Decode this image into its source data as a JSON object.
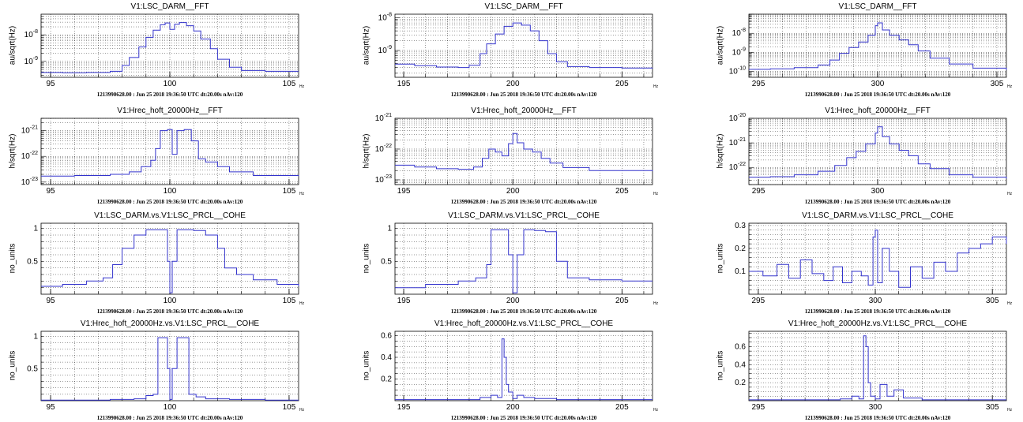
{
  "chart_data": [
    {
      "type": "line",
      "title": "V1:LSC_DARM__FFT",
      "ylabel": "au/sqrt(Hz)",
      "xunit": "Hz",
      "footer": "1213990628.00 : Jun 25 2018 19:36:50 UTC dt:20.00s nAv:120",
      "yscale": "log",
      "xlim": [
        94.6,
        105.4
      ],
      "ylim": [
        2.5e-10,
        6e-08
      ],
      "xticks": [
        "95",
        "100",
        "105"
      ],
      "xtick_values": [
        95,
        100,
        105
      ],
      "yticks": [
        "10^-9",
        "10^-8"
      ],
      "ytick_values": [
        1e-09,
        1e-08
      ],
      "series": [
        {
          "x": [
            94.6,
            95.5,
            96.5,
            97.5,
            98.0,
            98.3,
            98.7,
            99.0,
            99.3,
            99.6,
            99.8,
            100.0,
            100.2,
            100.4,
            100.7,
            101.0,
            101.3,
            101.7,
            102.0,
            102.5,
            103.0,
            104.0,
            105.4
          ],
          "y": [
            3.8e-10,
            3.7e-10,
            3.8e-10,
            4.2e-10,
            7e-10,
            1.4e-09,
            3.5e-09,
            8e-09,
            1.5e-08,
            2.4e-08,
            2.8e-08,
            1.6e-08,
            2.5e-08,
            2.9e-08,
            2.2e-08,
            1.4e-08,
            7e-09,
            3e-09,
            1.2e-09,
            6e-10,
            4.5e-10,
            4.2e-10,
            4.2e-10
          ]
        }
      ]
    },
    {
      "type": "line",
      "title": "V1:LSC_DARM__FFT",
      "ylabel": "au/sqrt(Hz)",
      "xunit": "Hz",
      "footer": "1213990628.00 : Jun 25 2018 19:36:50 UTC dt:20.00s nAv:120",
      "yscale": "log",
      "xlim": [
        194.6,
        206.4
      ],
      "ylim": [
        1.5e-10,
        1.3e-08
      ],
      "xticks": [
        "195",
        "200",
        "205"
      ],
      "xtick_values": [
        195,
        200,
        205
      ],
      "yticks": [
        "10^-9",
        "10^-8"
      ],
      "ytick_values": [
        1e-09,
        1e-08
      ],
      "series": [
        {
          "x": [
            194.6,
            195.5,
            196.5,
            197.5,
            198.0,
            198.5,
            198.8,
            199.2,
            199.6,
            200.0,
            200.4,
            200.8,
            201.2,
            201.6,
            202.0,
            202.5,
            203.5,
            205.0,
            206.4
          ],
          "y": [
            3.8e-10,
            3.4e-10,
            3.1e-10,
            3e-10,
            3.5e-10,
            8e-10,
            1.6e-09,
            3.2e-09,
            5.5e-09,
            7e-09,
            6e-09,
            4e-09,
            2e-09,
            8e-10,
            4.5e-10,
            3.2e-10,
            3e-10,
            2.9e-10,
            2.8e-10
          ]
        }
      ]
    },
    {
      "type": "line",
      "title": "V1:LSC_DARM__FFT",
      "ylabel": "au/sqrt(Hz)",
      "xunit": "Hz",
      "footer": "1213990628.00 : Jun 25 2018 19:36:50 UTC dt:20.00s nAv:120",
      "yscale": "log",
      "xlim": [
        294.6,
        305.4
      ],
      "ylim": [
        5e-11,
        1e-07
      ],
      "xticks": [
        "295",
        "300",
        "305"
      ],
      "xtick_values": [
        295,
        300,
        305
      ],
      "yticks": [
        "10^-10",
        "10^-9",
        "10^-8"
      ],
      "ytick_values": [
        1e-10,
        1e-09,
        1e-08
      ],
      "series": [
        {
          "x": [
            294.6,
            295.5,
            296.5,
            297.5,
            298.0,
            298.4,
            298.8,
            299.2,
            299.6,
            299.9,
            300.0,
            300.2,
            300.5,
            300.9,
            301.3,
            301.7,
            302.2,
            303.0,
            304.0,
            305.4
          ],
          "y": [
            1.3e-10,
            1.4e-10,
            1.6e-10,
            2.2e-10,
            4e-10,
            9e-10,
            1.8e-09,
            3.5e-09,
            8e-09,
            2.5e-08,
            3.5e-08,
            1.5e-08,
            8e-09,
            4.5e-09,
            2.5e-09,
            1.2e-09,
            5e-10,
            2.5e-10,
            1.5e-10,
            1.2e-10
          ]
        }
      ]
    },
    {
      "type": "line",
      "title": "V1:Hrec_hoft_20000Hz__FFT",
      "ylabel": "h/sqrt(Hz)",
      "xunit": "Hz",
      "footer": "1213990628.00 : Jun 25 2018 19:36:50 UTC dt:20.00s nAv:120",
      "yscale": "log",
      "xlim": [
        94.6,
        105.4
      ],
      "ylim": [
        8e-24,
        3e-21
      ],
      "xticks": [
        "95",
        "100",
        "105"
      ],
      "xtick_values": [
        95,
        100,
        105
      ],
      "yticks": [
        "10^-23",
        "10^-22",
        "10^-21"
      ],
      "ytick_values": [
        1e-23,
        1e-22,
        1e-21
      ],
      "series": [
        {
          "x": [
            94.6,
            96.0,
            97.5,
            98.3,
            98.8,
            99.2,
            99.4,
            99.6,
            99.9,
            100.1,
            100.3,
            100.6,
            100.9,
            101.2,
            101.5,
            102.0,
            102.5,
            103.5,
            105.4
          ],
          "y": [
            1.7e-23,
            1.8e-23,
            2e-23,
            2.5e-23,
            4e-23,
            7e-23,
            2e-22,
            1e-21,
            1.1e-21,
            1.2e-22,
            1e-21,
            1.1e-21,
            4e-22,
            8e-23,
            6e-23,
            4e-23,
            2.5e-23,
            1.8e-23,
            1.7e-23
          ]
        }
      ]
    },
    {
      "type": "line",
      "title": "V1:Hrec_hoft_20000Hz__FFT",
      "ylabel": "h/sqrt(Hz)",
      "xunit": "Hz",
      "footer": "1213990628.00 : Jun 25 2018 19:36:50 UTC dt:20.00s nAv:120",
      "yscale": "log",
      "xlim": [
        194.6,
        206.4
      ],
      "ylim": [
        7e-24,
        1e-21
      ],
      "xticks": [
        "195",
        "200",
        "205"
      ],
      "xtick_values": [
        195,
        200,
        205
      ],
      "yticks": [
        "10^-23",
        "10^-22",
        "10^-21"
      ],
      "ytick_values": [
        1e-23,
        1e-22,
        1e-21
      ],
      "series": [
        {
          "x": [
            194.6,
            195.5,
            196.5,
            197.5,
            198.2,
            198.6,
            198.9,
            199.2,
            199.5,
            199.8,
            200.0,
            200.2,
            200.5,
            200.9,
            201.3,
            201.7,
            202.3,
            203.5,
            206.4
          ],
          "y": [
            3e-23,
            2.6e-23,
            2.3e-23,
            2.2e-23,
            2.6e-23,
            5e-23,
            1e-22,
            8e-23,
            6e-23,
            1.5e-22,
            3.2e-22,
            1.6e-22,
            1e-22,
            8e-23,
            5e-23,
            3.5e-23,
            2.5e-23,
            2e-23,
            1.9e-23
          ]
        }
      ]
    },
    {
      "type": "line",
      "title": "V1:Hrec_hoft_20000Hz__FFT",
      "ylabel": "h/sqrt(Hz)",
      "xunit": "Hz",
      "footer": "1213990628.00 : Jun 25 2018 19:36:50 UTC dt:20.00s nAv:120",
      "yscale": "log",
      "xlim": [
        294.6,
        305.4
      ],
      "ylim": [
        2e-23,
        1e-20
      ],
      "xticks": [
        "295",
        "300"
      ],
      "xtick_values": [
        295,
        300
      ],
      "yticks": [
        "10^-22",
        "10^-21",
        "10^-20"
      ],
      "ytick_values": [
        1e-22,
        1e-21,
        1e-20
      ],
      "series": [
        {
          "x": [
            294.6,
            295.5,
            296.5,
            297.5,
            298.2,
            298.7,
            299.1,
            299.5,
            299.9,
            300.0,
            300.2,
            300.5,
            300.9,
            301.3,
            301.7,
            302.2,
            303.0,
            304.0,
            305.4
          ],
          "y": [
            4e-23,
            4.2e-23,
            5e-23,
            7e-23,
            1.2e-22,
            2.5e-22,
            4.5e-22,
            9e-22,
            2.5e-21,
            4.5e-21,
            1.8e-21,
            9e-22,
            5e-22,
            3e-22,
            1.4e-22,
            9e-23,
            5e-23,
            4e-23,
            3.5e-23
          ]
        }
      ]
    },
    {
      "type": "line",
      "title": "V1:LSC_DARM.vs.V1:LSC_PRCL__COHE",
      "ylabel": "no_units",
      "xunit": "Hz",
      "footer": "1213990628.00 : Jun 25 2018 19:36:50 UTC dt:20.00s nAv:120",
      "yscale": "linear",
      "xlim": [
        94.6,
        105.4
      ],
      "ylim": [
        0,
        1.08
      ],
      "xticks": [
        "95",
        "100",
        "105"
      ],
      "xtick_values": [
        95,
        100,
        105
      ],
      "yticks": [
        "0.5",
        "1"
      ],
      "ytick_values": [
        0.5,
        1
      ],
      "series": [
        {
          "x": [
            94.6,
            95.5,
            96.5,
            97.2,
            97.6,
            98.0,
            98.5,
            99.0,
            99.7,
            99.9,
            100.0,
            100.1,
            100.3,
            101.0,
            101.5,
            102.0,
            102.3,
            102.8,
            103.5,
            104.5,
            105.4
          ],
          "y": [
            0.12,
            0.15,
            0.2,
            0.25,
            0.45,
            0.7,
            0.9,
            0.98,
            0.98,
            0.5,
            0.02,
            0.5,
            0.98,
            0.97,
            0.9,
            0.7,
            0.4,
            0.3,
            0.22,
            0.15,
            0.12
          ]
        }
      ]
    },
    {
      "type": "line",
      "title": "V1:LSC_DARM.vs.V1:LSC_PRCL__COHE",
      "ylabel": "no_units",
      "xunit": "Hz",
      "footer": "1213990628.00 : Jun 25 2018 19:36:50 UTC dt:20.00s nAv:120",
      "yscale": "linear",
      "xlim": [
        194.6,
        206.4
      ],
      "ylim": [
        0,
        1.08
      ],
      "xticks": [
        "195",
        "200",
        "205"
      ],
      "xtick_values": [
        195,
        200,
        205
      ],
      "yticks": [
        "0.5",
        "1"
      ],
      "ytick_values": [
        0.5,
        1
      ],
      "series": [
        {
          "x": [
            194.6,
            196.0,
            197.5,
            198.3,
            198.8,
            199.0,
            199.5,
            199.8,
            200.0,
            200.2,
            200.5,
            201.0,
            201.5,
            202.0,
            202.5,
            203.5,
            205.0,
            206.4
          ],
          "y": [
            0.1,
            0.15,
            0.2,
            0.25,
            0.45,
            0.98,
            0.98,
            0.6,
            0.02,
            0.6,
            0.98,
            0.97,
            0.95,
            0.5,
            0.25,
            0.22,
            0.2,
            0.2
          ]
        }
      ]
    },
    {
      "type": "line",
      "title": "V1:LSC_DARM.vs.V1:LSC_PRCL__COHE",
      "ylabel": "no_units",
      "xunit": "Hz",
      "footer": "1213990628.00 : Jun 25 2018 19:36:50 UTC dt:20.00s nAv:120",
      "yscale": "linear",
      "xlim": [
        294.6,
        305.6
      ],
      "ylim": [
        0,
        0.31
      ],
      "xticks": [
        "295",
        "300",
        "305"
      ],
      "xtick_values": [
        295,
        300,
        305
      ],
      "yticks": [
        "0.1",
        "0.2",
        "0.3"
      ],
      "ytick_values": [
        0.1,
        0.2,
        0.3
      ],
      "series": [
        {
          "x": [
            294.6,
            295.2,
            295.8,
            296.3,
            296.8,
            297.3,
            297.8,
            298.2,
            298.6,
            299.0,
            299.4,
            299.7,
            299.9,
            300.0,
            300.1,
            300.3,
            300.6,
            301.0,
            301.5,
            302.0,
            302.5,
            303.0,
            303.5,
            304.0,
            304.5,
            305.0,
            305.6
          ],
          "y": [
            0.1,
            0.08,
            0.13,
            0.07,
            0.15,
            0.09,
            0.06,
            0.12,
            0.05,
            0.1,
            0.08,
            0.04,
            0.25,
            0.28,
            0.05,
            0.2,
            0.1,
            0.03,
            0.12,
            0.07,
            0.14,
            0.1,
            0.18,
            0.2,
            0.22,
            0.25,
            0.22
          ]
        }
      ]
    },
    {
      "type": "line",
      "title": "V1:Hrec_hoft_20000Hz.vs.V1:LSC_PRCL__COHE",
      "ylabel": "no_units",
      "xunit": "Hz",
      "footer": "1213990628.00 : Jun 25 2018 19:36:50 UTC dt:20.00s nAv:120",
      "yscale": "linear",
      "xlim": [
        94.6,
        105.4
      ],
      "ylim": [
        0,
        1.08
      ],
      "xticks": [
        "95",
        "100",
        "105"
      ],
      "xtick_values": [
        95,
        100,
        105
      ],
      "yticks": [
        "0.5",
        "1"
      ],
      "ytick_values": [
        0.5,
        1
      ],
      "series": [
        {
          "x": [
            94.6,
            96.0,
            97.5,
            98.5,
            99.0,
            99.3,
            99.5,
            99.7,
            99.9,
            100.0,
            100.1,
            100.3,
            100.5,
            100.8,
            101.1,
            101.5,
            102.5,
            104.0,
            105.4
          ],
          "y": [
            0.01,
            0.01,
            0.02,
            0.03,
            0.08,
            0.1,
            0.98,
            0.98,
            0.5,
            0.02,
            0.5,
            0.98,
            0.98,
            0.1,
            0.06,
            0.03,
            0.02,
            0.01,
            0.01
          ]
        }
      ]
    },
    {
      "type": "line",
      "title": "V1:Hrec_hoft_20000Hz.vs.V1:LSC_PRCL__COHE",
      "ylabel": "no_units",
      "xunit": "Hz",
      "footer": "1213990628.00 : Jun 25 2018 19:36:50 UTC dt:20.00s nAv:120",
      "yscale": "linear",
      "xlim": [
        194.6,
        206.4
      ],
      "ylim": [
        0,
        0.64
      ],
      "xticks": [
        "195",
        "200",
        "205"
      ],
      "xtick_values": [
        195,
        200,
        205
      ],
      "yticks": [
        "0.2",
        "0.4",
        "0.6"
      ],
      "ytick_values": [
        0.2,
        0.4,
        0.6
      ],
      "series": [
        {
          "x": [
            194.6,
            196.0,
            197.5,
            198.5,
            199.0,
            199.3,
            199.5,
            199.6,
            199.7,
            199.8,
            200.0,
            200.2,
            200.5,
            201.0,
            202.0,
            204.0,
            206.4
          ],
          "y": [
            0.01,
            0.01,
            0.01,
            0.03,
            0.05,
            0.03,
            0.57,
            0.4,
            0.15,
            0.08,
            0.02,
            0.05,
            0.03,
            0.02,
            0.01,
            0.01,
            0.01
          ]
        }
      ]
    },
    {
      "type": "line",
      "title": "V1:Hrec_hoft_20000Hz.vs.V1:LSC_PRCL__COHE",
      "ylabel": "no_units",
      "xunit": "Hz",
      "footer": "1213990628.00 : Jun 25 2018 19:36:50 UTC dt:20.00s nAv:120",
      "yscale": "linear",
      "xlim": [
        294.6,
        305.6
      ],
      "ylim": [
        0,
        0.77
      ],
      "xticks": [
        "295",
        "300",
        "305"
      ],
      "xtick_values": [
        295,
        300,
        305
      ],
      "yticks": [
        "0.2",
        "0.4",
        "0.6"
      ],
      "ytick_values": [
        0.2,
        0.4,
        0.6
      ],
      "series": [
        {
          "x": [
            294.6,
            296.0,
            297.5,
            298.5,
            299.0,
            299.3,
            299.5,
            299.6,
            299.7,
            299.8,
            300.0,
            300.2,
            300.5,
            300.8,
            301.2,
            302.0,
            304.0,
            305.6
          ],
          "y": [
            0.01,
            0.01,
            0.01,
            0.02,
            0.05,
            0.02,
            0.72,
            0.6,
            0.2,
            0.05,
            0.02,
            0.18,
            0.05,
            0.12,
            0.03,
            0.01,
            0.01,
            0.01
          ]
        }
      ]
    }
  ],
  "colors": {
    "line": "#3333cc",
    "grid": "#000000"
  }
}
